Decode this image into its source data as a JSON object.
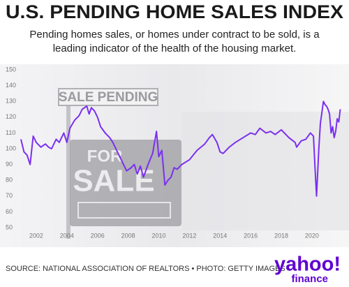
{
  "chart_data": {
    "type": "line",
    "title": "U.S. PENDING HOME SALES INDEX",
    "subtitle_lines": [
      "Pending homes sales, or homes under contract to be sold, is a",
      "leading indicator of the health of the housing market."
    ],
    "background_sign": {
      "top": "SALE PENDING",
      "bottom_1": "FOR",
      "bottom_2": "SALE"
    },
    "x": [
      2001.0,
      2001.2,
      2001.4,
      2001.6,
      2001.8,
      2002.0,
      2002.3,
      2002.6,
      2002.8,
      2003.0,
      2003.3,
      2003.5,
      2003.8,
      2004.0,
      2004.2,
      2004.5,
      2004.8,
      2005.0,
      2005.3,
      2005.45,
      2005.6,
      2005.8,
      2006.0,
      2006.2,
      2006.5,
      2006.8,
      2007.0,
      2007.3,
      2007.6,
      2007.9,
      2008.2,
      2008.4,
      2008.6,
      2008.8,
      2009.0,
      2009.3,
      2009.6,
      2009.85,
      2010.0,
      2010.2,
      2010.4,
      2010.6,
      2010.8,
      2011.0,
      2011.2,
      2011.5,
      2012.0,
      2012.5,
      2013.0,
      2013.3,
      2013.5,
      2013.8,
      2014.0,
      2014.2,
      2014.6,
      2015.0,
      2015.5,
      2016.0,
      2016.3,
      2016.6,
      2017.0,
      2017.3,
      2017.6,
      2018.0,
      2018.5,
      2018.9,
      2019.0,
      2019.3,
      2019.6,
      2019.9,
      2020.1,
      2020.2,
      2020.3,
      2020.45,
      2020.55,
      2020.65,
      2020.75,
      2020.85,
      2020.95,
      2021.05,
      2021.15,
      2021.25,
      2021.35,
      2021.45,
      2021.55,
      2021.65,
      2021.75,
      2021.85
    ],
    "values": [
      106,
      98,
      96,
      90,
      108,
      104,
      101,
      103,
      101,
      100,
      106,
      104,
      110,
      104,
      113,
      118,
      121,
      125,
      127,
      122,
      126,
      124,
      120,
      114,
      110,
      107,
      104,
      98,
      92,
      86,
      88,
      90,
      84,
      89,
      82,
      90,
      97,
      111,
      95,
      99,
      77,
      80,
      82,
      88,
      87,
      90,
      93,
      99,
      103,
      107,
      109,
      104,
      98,
      97,
      101,
      104,
      107,
      110,
      109,
      113,
      110,
      111,
      109,
      112,
      107,
      104,
      101,
      105,
      106,
      110,
      108,
      88,
      70,
      100,
      116,
      123,
      130,
      128,
      127,
      125,
      122,
      110,
      114,
      107,
      111,
      119,
      117,
      125
    ],
    "color": "#7b2ff0",
    "xlim": [
      2000.7,
      2021.9
    ],
    "xticks": [
      2002,
      2004,
      2006,
      2008,
      2010,
      2012,
      2014,
      2016,
      2018,
      2020
    ],
    "ylim": [
      50,
      150
    ],
    "yticks": [
      50,
      60,
      70,
      80,
      90,
      100,
      110,
      120,
      130,
      140,
      150
    ],
    "source": "SOURCE: NATIONAL ASSOCIATION OF REALTORS • PHOTO: GETTY IMAGES",
    "logo": {
      "name": "yahoo!",
      "sub": "finance"
    }
  }
}
